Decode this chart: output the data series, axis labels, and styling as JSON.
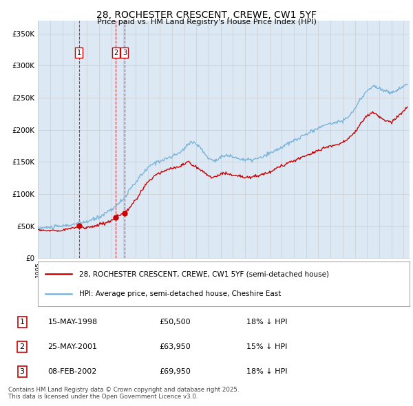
{
  "title": "28, ROCHESTER CRESCENT, CREWE, CW1 5YF",
  "subtitle": "Price paid vs. HM Land Registry's House Price Index (HPI)",
  "ylim": [
    0,
    370000
  ],
  "yticks": [
    0,
    50000,
    100000,
    150000,
    200000,
    250000,
    300000,
    350000
  ],
  "ytick_labels": [
    "£0",
    "£50K",
    "£100K",
    "£150K",
    "£200K",
    "£250K",
    "£300K",
    "£350K"
  ],
  "hpi_color": "#7ab4d8",
  "price_color": "#cc0000",
  "grid_color": "#cccccc",
  "chart_bg": "#dce9f5",
  "bg_color": "#ffffff",
  "sales": [
    {
      "date_num": 1998.37,
      "price": 50500,
      "label": "1"
    },
    {
      "date_num": 2001.39,
      "price": 63950,
      "label": "2"
    },
    {
      "date_num": 2002.1,
      "price": 69950,
      "label": "3"
    }
  ],
  "sale_table": [
    {
      "num": "1",
      "date": "15-MAY-1998",
      "price": "£50,500",
      "hpi": "18% ↓ HPI"
    },
    {
      "num": "2",
      "date": "25-MAY-2001",
      "price": "£63,950",
      "hpi": "15% ↓ HPI"
    },
    {
      "num": "3",
      "date": "08-FEB-2002",
      "price": "£69,950",
      "hpi": "18% ↓ HPI"
    }
  ],
  "legend_entries": [
    "28, ROCHESTER CRESCENT, CREWE, CW1 5YF (semi-detached house)",
    "HPI: Average price, semi-detached house, Cheshire East"
  ],
  "footnote": "Contains HM Land Registry data © Crown copyright and database right 2025.\nThis data is licensed under the Open Government Licence v3.0.",
  "xmin": 1995.0,
  "xmax": 2025.5
}
